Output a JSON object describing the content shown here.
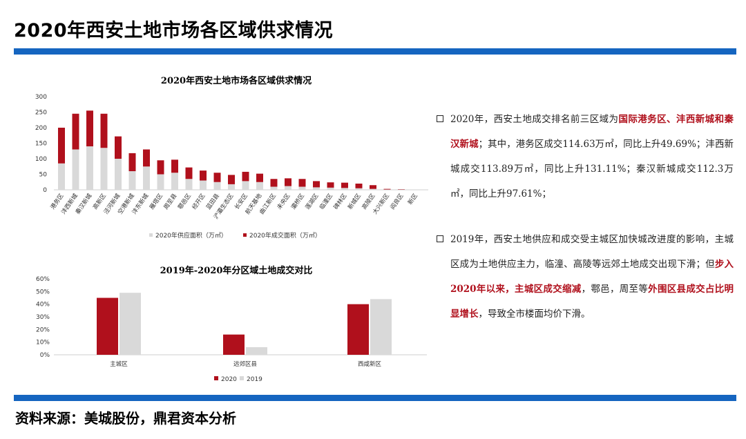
{
  "header": {
    "title": "2020年西安土地市场各区域供求情况"
  },
  "footer": {
    "source": "资料来源：美城股份，鼎君资本分析"
  },
  "colors": {
    "accent_blue": "#1565c0",
    "supply": "#d9d9d9",
    "deal": "#b0101c",
    "y2020": "#b0101c",
    "y2019": "#d9d9d9"
  },
  "chart_data": [
    {
      "type": "bar",
      "stacked": true,
      "title": "2020年西安土地市场各区域供求情况",
      "categories": [
        "港务区",
        "沣西新城",
        "秦汉新城",
        "高新区",
        "泾河新城",
        "空港新城",
        "沣东新城",
        "雁塔区",
        "周至县",
        "鄠邑区",
        "经开区",
        "蓝田县",
        "浐灞生态区",
        "长安区",
        "航天基地",
        "曲江新区",
        "未央区",
        "灞桥区",
        "莲湖区",
        "临潼区",
        "碑林区",
        "新城区",
        "高陵区",
        "大兴新区",
        "阎良区",
        "新区"
      ],
      "series": [
        {
          "name": "2020年供应面积（万㎡）",
          "values": [
            85,
            130,
            140,
            135,
            100,
            60,
            75,
            50,
            55,
            35,
            30,
            25,
            18,
            28,
            25,
            10,
            12,
            10,
            8,
            7,
            6,
            5,
            3,
            1,
            1,
            0
          ]
        },
        {
          "name": "2020年成交面积（万㎡）",
          "values": [
            115,
            115,
            115,
            110,
            72,
            58,
            55,
            45,
            42,
            37,
            32,
            30,
            30,
            30,
            27,
            25,
            25,
            25,
            20,
            17,
            17,
            15,
            12,
            2,
            1,
            0
          ]
        }
      ],
      "yticks": [
        0,
        50,
        100,
        150,
        200,
        250,
        300
      ],
      "ylim": [
        0,
        300
      ],
      "legend": "bottom"
    },
    {
      "type": "bar",
      "title": "2019年-2020年分区域土地成交对比",
      "categories": [
        "主城区",
        "远郊区县",
        "西咸新区"
      ],
      "series": [
        {
          "name": "2020",
          "values": [
            45,
            16,
            40
          ]
        },
        {
          "name": "2019",
          "values": [
            49,
            6,
            44
          ]
        }
      ],
      "yticks": [
        "0%",
        "10%",
        "20%",
        "30%",
        "40%",
        "50%",
        "60%"
      ],
      "ylim": [
        0,
        60
      ],
      "legend": "bottom"
    }
  ],
  "notes": [
    {
      "parts": [
        {
          "t": "2020年，西安土地成交排名前三区域为",
          "h": false
        },
        {
          "t": "国际港务区、沣西新城和秦汉新城",
          "h": true
        },
        {
          "t": "；其中，港务区成交114.63万㎡，同比上升49.69%；沣西新城成交113.89万㎡，同比上升131.11%；秦汉新城成交112.3万㎡，同比上升97.61%；",
          "h": false
        }
      ]
    },
    {
      "parts": [
        {
          "t": "2019年，西安土地供应和成交受主城区加快城改进度的影响，主城区成为土地供应主力，临潼、高陵等远郊土地成交出现下滑；但",
          "h": false
        },
        {
          "t": "步入2020年以来，主城区成交缩减",
          "h": true
        },
        {
          "t": "，鄠邑，周至等",
          "h": false
        },
        {
          "t": "外围区县成交占比明显增长",
          "h": true
        },
        {
          "t": "，导致全市楼面均价下滑。",
          "h": false
        }
      ]
    }
  ]
}
